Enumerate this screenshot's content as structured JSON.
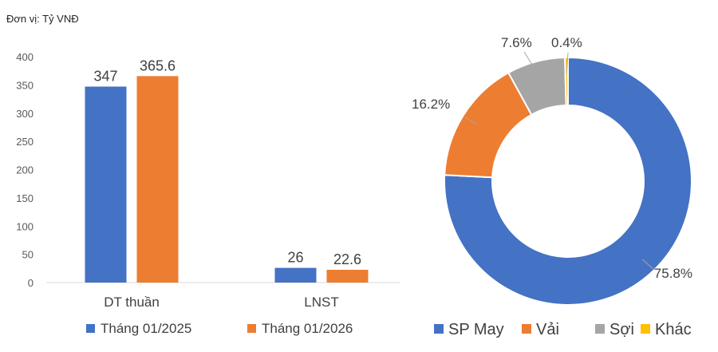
{
  "unit_label": "Đơn vị: Tỷ VNĐ",
  "chart_data": [
    {
      "type": "bar",
      "categories": [
        "DT thuần",
        "LNST"
      ],
      "series": [
        {
          "name": "Tháng 01/2025",
          "values": [
            347,
            26
          ],
          "labels": [
            "347",
            "26"
          ],
          "color": "#4472C4"
        },
        {
          "name": "Tháng 01/2026",
          "values": [
            365.6,
            22.6
          ],
          "labels": [
            "365.6",
            "22.6"
          ],
          "color": "#ED7D31"
        }
      ],
      "ylim": [
        0,
        400
      ],
      "yticks": [
        "0",
        "50",
        "100",
        "150",
        "200",
        "250",
        "300",
        "350",
        "400"
      ],
      "grid": false,
      "legend": "bottom"
    },
    {
      "type": "pie",
      "donut": true,
      "slices": [
        {
          "name": "SP May",
          "value": 75.8,
          "label": "75.8%",
          "color": "#4472C4"
        },
        {
          "name": "Vải",
          "value": 16.2,
          "label": "16.2%",
          "color": "#ED7D31"
        },
        {
          "name": "Sợi",
          "value": 7.6,
          "label": "7.6%",
          "color": "#A5A5A5"
        },
        {
          "name": "Khác",
          "value": 0.4,
          "label": "0.4%",
          "color": "#FFC000"
        }
      ],
      "legend": "bottom"
    }
  ]
}
